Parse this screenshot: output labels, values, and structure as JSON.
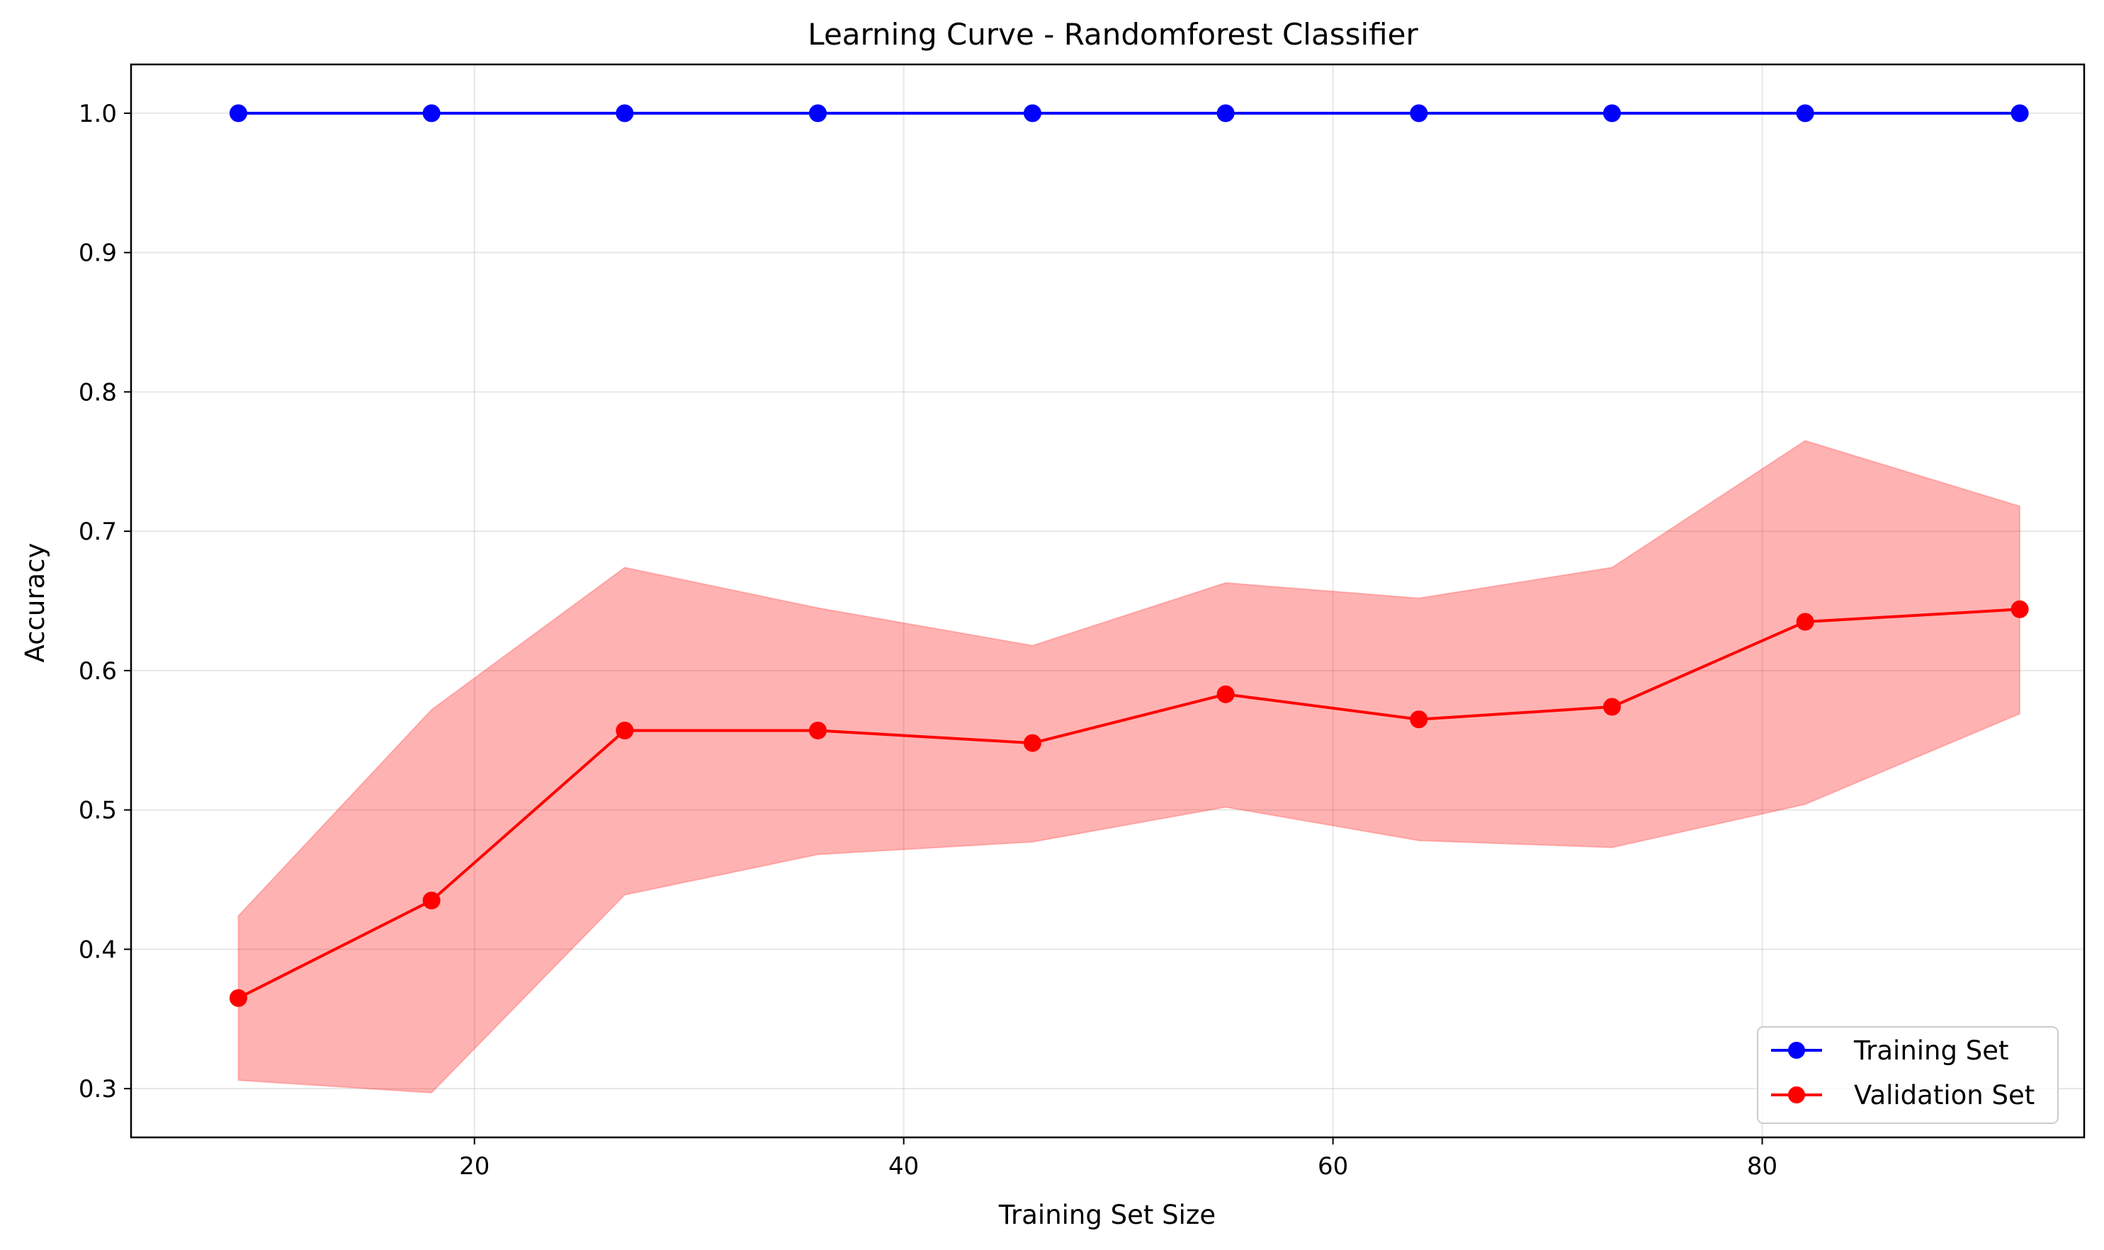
{
  "chart_data": {
    "type": "line",
    "title": "Learning Curve - Randomforest Classifier",
    "xlabel": "Training Set Size",
    "ylabel": "Accuracy",
    "xlim": [
      4,
      95
    ],
    "ylim": [
      0.265,
      1.035
    ],
    "x_ticks": [
      20,
      40,
      60,
      80
    ],
    "y_ticks": [
      0.3,
      0.4,
      0.5,
      0.6,
      0.7,
      0.8,
      0.9,
      1.0
    ],
    "grid": true,
    "legend_position": "lower-right",
    "x": [
      9,
      18,
      27,
      36,
      46,
      55,
      64,
      73,
      82,
      92
    ],
    "series": [
      {
        "name": "Training Set",
        "color": "#0000ff",
        "marker": "circle",
        "values": [
          1.0,
          1.0,
          1.0,
          1.0,
          1.0,
          1.0,
          1.0,
          1.0,
          1.0,
          1.0
        ]
      },
      {
        "name": "Validation Set",
        "color": "#ff0000",
        "marker": "circle",
        "values": [
          0.365,
          0.435,
          0.557,
          0.557,
          0.548,
          0.583,
          0.565,
          0.574,
          0.635,
          0.644
        ],
        "band_lower": [
          0.306,
          0.297,
          0.439,
          0.468,
          0.477,
          0.502,
          0.478,
          0.473,
          0.504,
          0.569
        ],
        "band_upper": [
          0.424,
          0.572,
          0.674,
          0.645,
          0.618,
          0.663,
          0.652,
          0.674,
          0.765,
          0.718
        ],
        "band_color": "#ff0000",
        "band_opacity": 0.3
      }
    ]
  }
}
